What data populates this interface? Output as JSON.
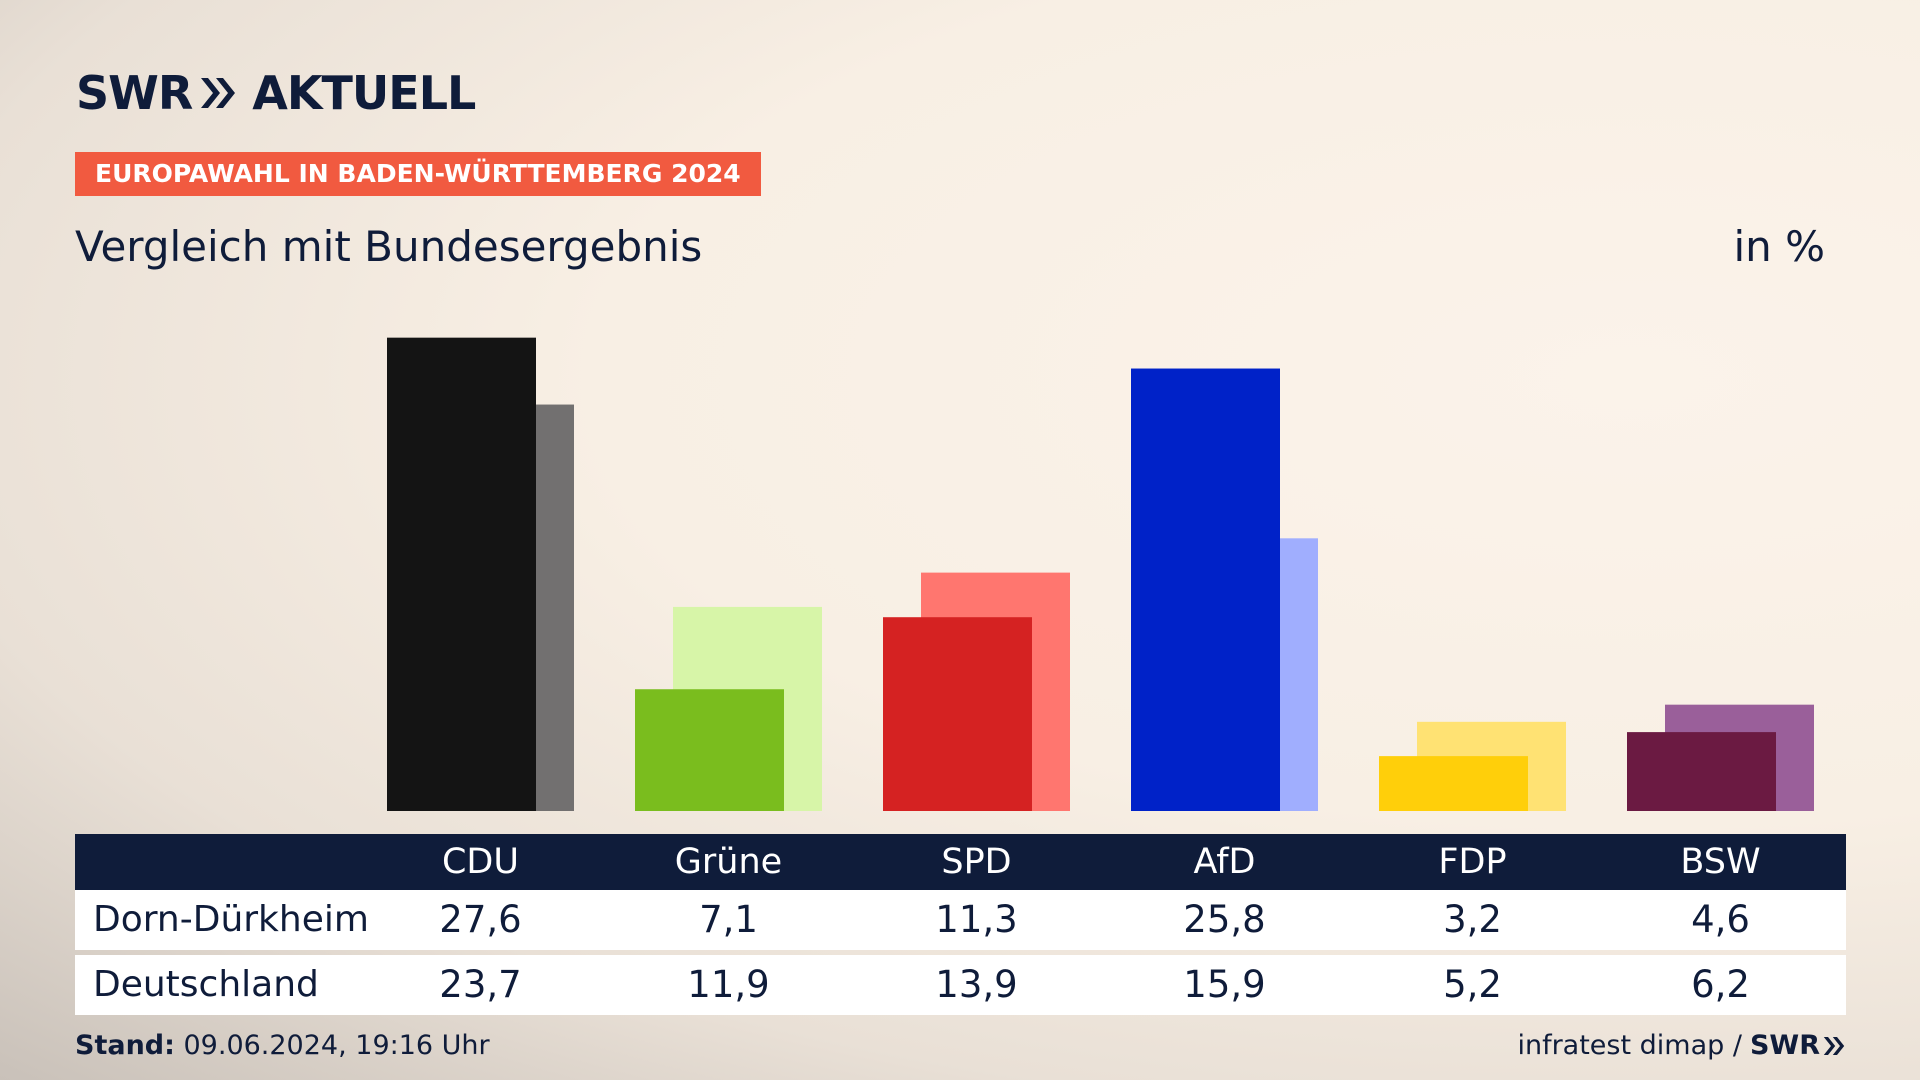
{
  "brand": {
    "logo_left": "SWR",
    "logo_right": "AKTUELL",
    "footer_logo": "SWR"
  },
  "badge": "EUROPAWAHL IN BADEN-WÜRTTEMBERG 2024",
  "subtitle": "Vergleich mit Bundesergebnis",
  "unit": "in %",
  "table": {
    "rows": [
      {
        "label": "Dorn-Dürkheim",
        "values": [
          "27,6",
          "7,1",
          "11,3",
          "25,8",
          "3,2",
          "4,6"
        ]
      },
      {
        "label": "Deutschland",
        "values": [
          "23,7",
          "11,9",
          "13,9",
          "15,9",
          "5,2",
          "6,2"
        ]
      }
    ]
  },
  "footer": {
    "stand_label": "Stand:",
    "stand_value": " 09.06.2024, 19:16 Uhr",
    "source": "infratest dimap /"
  },
  "chart_data": {
    "type": "bar",
    "categories": [
      "CDU",
      "Grüne",
      "SPD",
      "AfD",
      "FDP",
      "BSW"
    ],
    "series": [
      {
        "name": "Dorn-Dürkheim",
        "values": [
          27.6,
          7.1,
          11.3,
          25.8,
          3.2,
          4.6
        ]
      },
      {
        "name": "Deutschland",
        "values": [
          23.7,
          11.9,
          13.9,
          15.9,
          5.2,
          6.2
        ]
      }
    ],
    "colors": {
      "primary": [
        "#141414",
        "#7abd1e",
        "#d52222",
        "#0022c8",
        "#ffcf0a",
        "#6b1a42"
      ],
      "secondary": [
        "#727070",
        "#d7f5a8",
        "#ff766f",
        "#a0aefe",
        "#ffe273",
        "#9a5f9a"
      ]
    },
    "ylim": [
      0,
      28
    ]
  }
}
